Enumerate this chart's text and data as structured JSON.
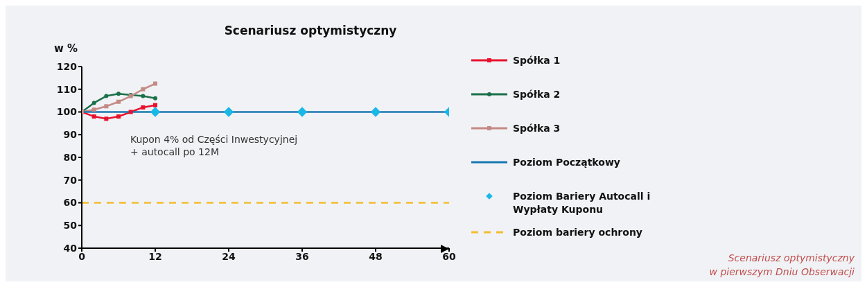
{
  "chart_data": {
    "type": "line",
    "title": "Scenariusz optymistyczny",
    "ylabel": "w %",
    "annotations": [
      "Kupon 4% od Części Inwestycyjnej\n+ autocall po 12M",
      "Scenariusz optymistyczny\nw pierwszym Dniu Obserwacji"
    ],
    "x": [
      0,
      2,
      4,
      6,
      8,
      10,
      12
    ],
    "series": [
      {
        "name": "Spółka 1",
        "color": "#e8112d",
        "marker": "square",
        "values": [
          100,
          98,
          97,
          98,
          100,
          102,
          103
        ]
      },
      {
        "name": "Spółka 2",
        "color": "#1a7048",
        "marker": "circle",
        "values": [
          100,
          104,
          107,
          108,
          107.5,
          107,
          106
        ]
      },
      {
        "name": "Spółka 3",
        "color": "#c48a85",
        "marker": "square",
        "values": [
          100,
          101,
          102.5,
          104.5,
          107,
          110,
          112.5
        ]
      },
      {
        "name": "Poziom Początkowy",
        "color": "#1878b0",
        "marker": "none",
        "x": [
          0,
          60
        ],
        "values": [
          100,
          100
        ]
      },
      {
        "name": "Poziom Bariery Autocall i Wypłaty Kuponu",
        "type": "scatter",
        "color": "#1ab8e6",
        "marker": "diamond",
        "x": [
          12,
          24,
          36,
          48,
          60
        ],
        "values": [
          100,
          100,
          100,
          100,
          100
        ]
      },
      {
        "name": "Poziom bariery ochrony",
        "color": "#f3bd2e",
        "marker": "none",
        "line_style": "dashed",
        "x": [
          0,
          60
        ],
        "values": [
          60,
          60
        ]
      }
    ],
    "xlim": [
      0,
      60
    ],
    "xticks": [
      0,
      12,
      24,
      36,
      48,
      60
    ],
    "ylim": [
      40,
      120
    ],
    "yticks": [
      40,
      50,
      60,
      70,
      80,
      90,
      100,
      110,
      120
    ],
    "grid": false,
    "legend": "right"
  }
}
